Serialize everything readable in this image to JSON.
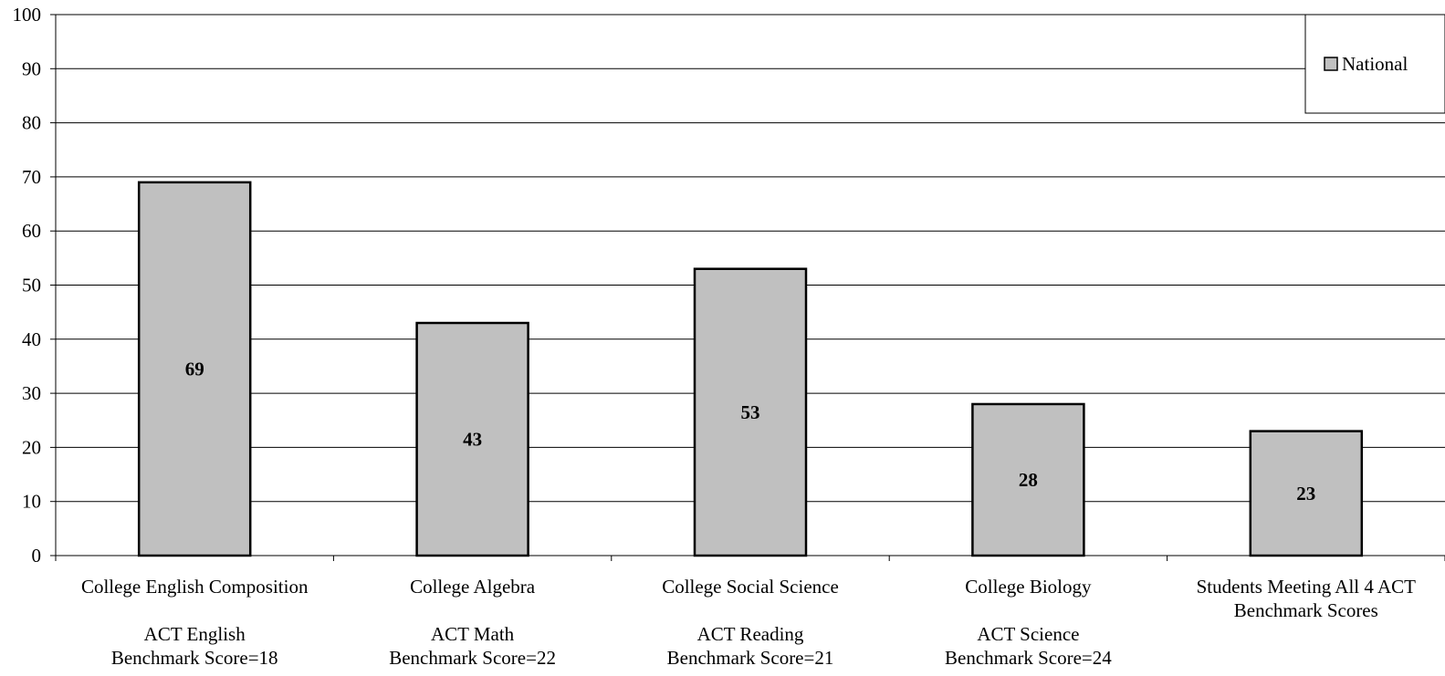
{
  "chart_data": {
    "type": "bar",
    "categories": [
      [
        "College English Composition",
        "",
        "ACT English",
        "Benchmark Score=18"
      ],
      [
        "College Algebra",
        "",
        "ACT Math",
        "Benchmark Score=22"
      ],
      [
        "College Social Science",
        "",
        "ACT Reading",
        "Benchmark Score=21"
      ],
      [
        "College Biology",
        "",
        "ACT Science",
        "Benchmark Score=24"
      ],
      [
        "Students Meeting All 4 ACT",
        "Benchmark Scores"
      ]
    ],
    "series": [
      {
        "name": "National",
        "values": [
          69,
          43,
          53,
          28,
          23
        ]
      }
    ],
    "ylim": [
      0,
      100
    ],
    "yticks": [
      0,
      10,
      20,
      30,
      40,
      50,
      60,
      70,
      80,
      90,
      100
    ],
    "grid": true,
    "legend": "top-right",
    "colors": {
      "bar": "#c0c0c0",
      "bar_stroke": "#000000",
      "grid": "#000000"
    }
  }
}
